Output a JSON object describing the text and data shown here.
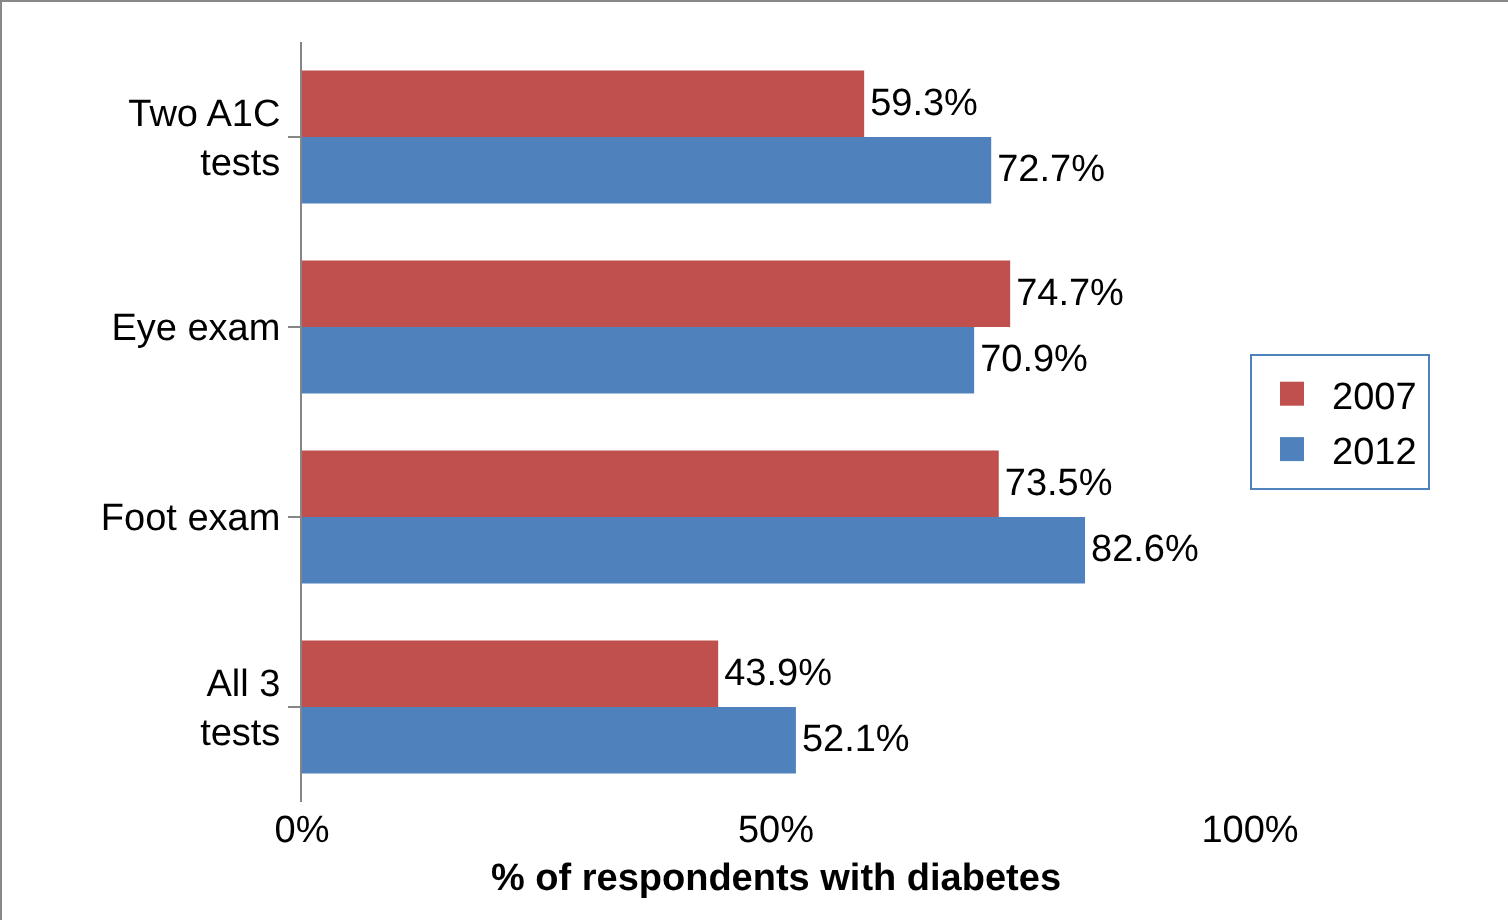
{
  "chart_data": {
    "type": "bar",
    "orientation": "horizontal",
    "xlabel": "% of respondents with diabetes",
    "categories": [
      "Two A1C tests",
      "Eye exam",
      "Foot exam",
      "All 3 tests"
    ],
    "series": [
      {
        "name": "2007",
        "color": "#c0504d",
        "values": [
          59.3,
          74.7,
          73.5,
          43.9
        ],
        "value_labels": [
          "59.3%",
          "74.7%",
          "73.5%",
          "43.9%"
        ]
      },
      {
        "name": "2012",
        "color": "#4f81bd",
        "values": [
          72.7,
          70.9,
          82.6,
          52.1
        ],
        "value_labels": [
          "72.7%",
          "70.9%",
          "82.6%",
          "52.1%"
        ]
      }
    ],
    "xlim": [
      0,
      100
    ],
    "xticks": [
      {
        "value": 0,
        "label": "0%"
      },
      {
        "value": 50,
        "label": "50%"
      },
      {
        "value": 100,
        "label": "100%"
      }
    ],
    "grid": false,
    "legend": "right"
  }
}
